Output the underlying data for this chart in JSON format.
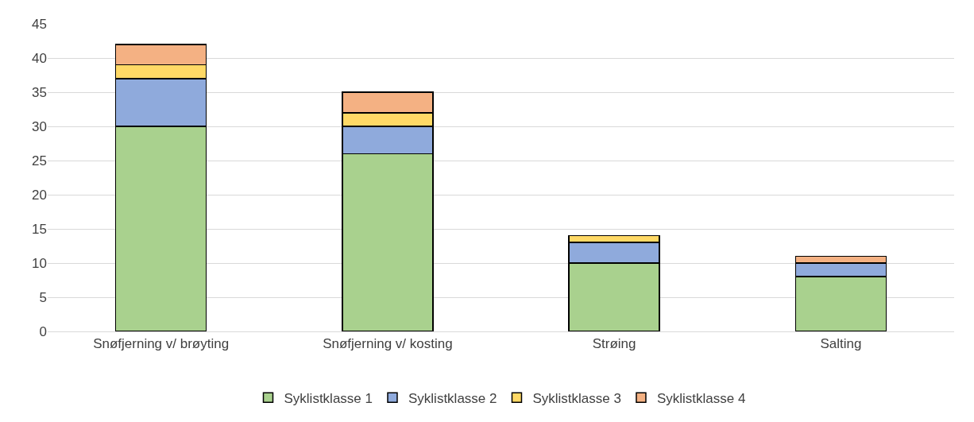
{
  "chart_data": {
    "type": "bar",
    "stacked": true,
    "categories": [
      "Snøfjerning v/ brøyting",
      "Snøfjerning v/ kosting",
      "Strøing",
      "Salting"
    ],
    "series": [
      {
        "name": "Syklistklasse 1",
        "color": "#a9d18e",
        "values": [
          30,
          26,
          10,
          8
        ]
      },
      {
        "name": "Syklistklasse 2",
        "color": "#8faadc",
        "values": [
          7,
          4,
          3,
          2
        ]
      },
      {
        "name": "Syklistklasse 3",
        "color": "#ffd966",
        "values": [
          2,
          2,
          1,
          0
        ]
      },
      {
        "name": "Syklistklasse 4",
        "color": "#f4b183",
        "values": [
          3,
          3,
          0,
          1
        ]
      }
    ],
    "ylim": [
      0,
      45
    ],
    "yticks": [
      0,
      5,
      10,
      15,
      20,
      25,
      30,
      35,
      40,
      45
    ],
    "grid": "y",
    "legend": "bottom"
  }
}
